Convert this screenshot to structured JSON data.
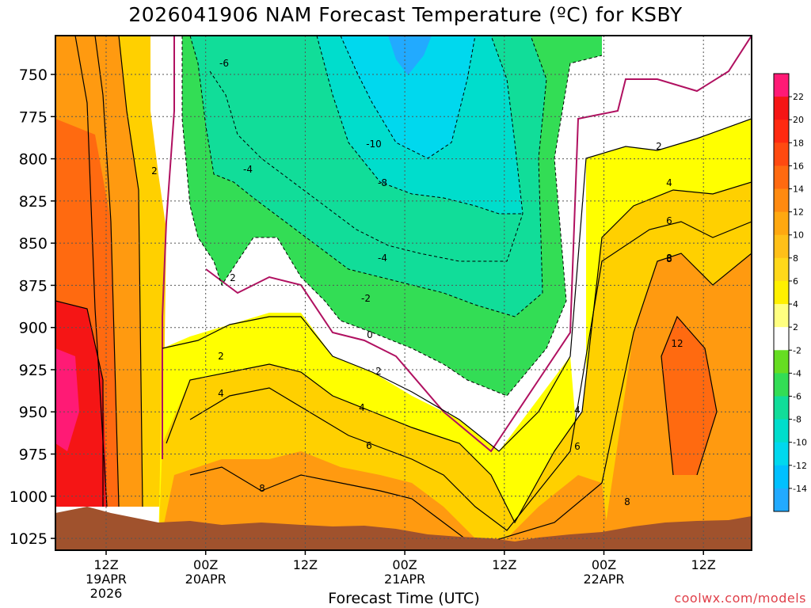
{
  "chart_data": {
    "type": "heatmap",
    "title": "2026041906 NAM Forecast Temperature (ºC) for KSBY",
    "xlabel": "Forecast Time (UTC)",
    "ylabel": "",
    "credit": "coolwx.com/models",
    "y_scale": "pressure (inverted, top = 725 hPa)",
    "ylim": [
      1032,
      727
    ],
    "y_ticks": [
      "750",
      "775",
      "800",
      "825",
      "850",
      "875",
      "900",
      "925",
      "950",
      "975",
      "1000",
      "1025"
    ],
    "x_ticks": [
      {
        "label": "12Z",
        "sub": [
          "19APR",
          "2026"
        ]
      },
      {
        "label": "00Z",
        "sub": [
          "20APR"
        ]
      },
      {
        "label": "12Z",
        "sub": []
      },
      {
        "label": "00Z",
        "sub": [
          "21APR"
        ]
      },
      {
        "label": "12Z",
        "sub": []
      },
      {
        "label": "00Z",
        "sub": [
          "22APR"
        ]
      },
      {
        "label": "12Z",
        "sub": []
      }
    ],
    "colorbar": {
      "labels": [
        "22",
        "20",
        "18",
        "16",
        "14",
        "12",
        "10",
        "8",
        "6",
        "4",
        "2",
        "-2",
        "-4",
        "-6",
        "-8",
        "-10",
        "-12",
        "-14"
      ],
      "colors": [
        "#ff1a75",
        "#f51515",
        "#ff2a10",
        "#ff4a10",
        "#ff6a10",
        "#ff8a10",
        "#ffa810",
        "#ffc018",
        "#ffd81a",
        "#fff000",
        "#ffff80",
        "#ffffff",
        "#66dd22",
        "#33dd55",
        "#11dd99",
        "#00ddcc",
        "#00d8ee",
        "#00c0ff",
        "#22aaff"
      ]
    },
    "contour_labels": [
      "-6",
      "-4",
      "-10",
      "-8",
      "-4",
      "-2",
      "0",
      "2",
      "2",
      "2",
      "2",
      "4",
      "4",
      "4",
      "6",
      "6",
      "8",
      "8",
      "8",
      "12",
      "2",
      "4",
      "6",
      "8"
    ],
    "zones": [
      {
        "range": "<= -10",
        "color": "#00d8ee"
      },
      {
        "range": "-10 to -6",
        "color": "#11dd99"
      },
      {
        "range": "-6 to -2",
        "color": "#33dd55"
      },
      {
        "range": "-2 to 2",
        "color": "#ffffff"
      },
      {
        "range": "2 to 4",
        "color": "#ffff00"
      },
      {
        "range": "4 to 8",
        "color": "#ffd000"
      },
      {
        "range": "8 to 12",
        "color": "#ff9a10"
      },
      {
        "range": ">= 12",
        "color": "#ff5a10"
      },
      {
        "range": ">= 18",
        "color": "#f51515"
      }
    ],
    "ground_color": "#a0522d"
  }
}
